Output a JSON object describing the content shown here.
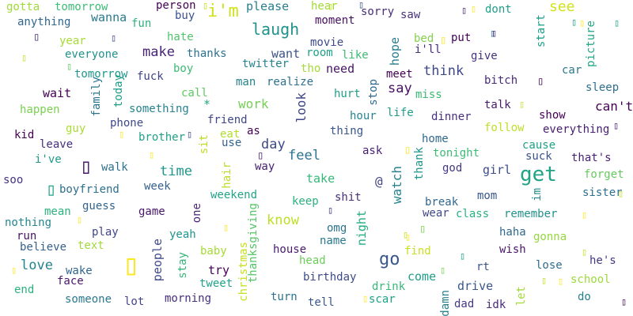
{
  "words": [
    {
      "text": "gotta",
      "color": "#a0da39"
    },
    {
      "text": "tomorrow",
      "color": "#3dbc74"
    },
    {
      "text": "wanna",
      "color": "#2a788e"
    },
    {
      "text": "person",
      "color": "#440154"
    },
    {
      "text": "i'm",
      "color": "#d0e11c"
    },
    {
      "text": "please",
      "color": "#277f8e"
    },
    {
      "text": "hear",
      "color": "#a2da37"
    },
    {
      "text": "sorry",
      "color": "#472d7b"
    },
    {
      "text": "saw",
      "color": "#46327e"
    },
    {
      "text": "dont",
      "color": "#1f9e89"
    },
    {
      "text": "see",
      "color": "#d2e21b"
    },
    {
      "text": "anything",
      "color": "#31688e"
    },
    {
      "text": "fun",
      "color": "#2db27d"
    },
    {
      "text": "buy",
      "color": "#3b528b"
    },
    {
      "text": "moment",
      "color": "#470e61"
    },
    {
      "text": "laugh",
      "color": "#21918c"
    },
    {
      "text": "year",
      "color": "#a8db34"
    },
    {
      "text": "hate",
      "color": "#50c46a"
    },
    {
      "text": "movie",
      "color": "#3e4a89"
    },
    {
      "text": "bed",
      "color": "#84d44b"
    },
    {
      "text": "put",
      "color": "#440154"
    },
    {
      "text": "start",
      "color": "#1fa088"
    },
    {
      "text": "picture",
      "color": "#22a785"
    },
    {
      "text": "everyone",
      "color": "#21918c"
    },
    {
      "text": "make",
      "color": "#482475"
    },
    {
      "text": "thanks",
      "color": "#2c728e"
    },
    {
      "text": "room",
      "color": "#1fa187"
    },
    {
      "text": "like",
      "color": "#3dbc74"
    },
    {
      "text": "hope",
      "color": "#287d8e"
    },
    {
      "text": "i'll",
      "color": "#472c7a"
    },
    {
      "text": "give",
      "color": "#46337f"
    },
    {
      "text": "want",
      "color": "#3b528b"
    },
    {
      "text": "twitter",
      "color": "#26828e"
    },
    {
      "text": "boy",
      "color": "#3bbb75"
    },
    {
      "text": "tho",
      "color": "#a5db36"
    },
    {
      "text": "need",
      "color": "#471365"
    },
    {
      "text": "meet",
      "color": "#440154"
    },
    {
      "text": "think",
      "color": "#3e4989"
    },
    {
      "text": "car",
      "color": "#2a788e"
    },
    {
      "text": "tomorrow",
      "color": "#1f988b"
    },
    {
      "text": "today",
      "color": "#1f9e89"
    },
    {
      "text": "fuck",
      "color": "#404387"
    },
    {
      "text": "man",
      "color": "#27808e"
    },
    {
      "text": "realize",
      "color": "#2d708e"
    },
    {
      "text": "bitch",
      "color": "#472a7a"
    },
    {
      "text": "sleep",
      "color": "#2e6e8e"
    },
    {
      "text": "wait",
      "color": "#440154"
    },
    {
      "text": "call",
      "color": "#5ec962"
    },
    {
      "text": "stop",
      "color": "#2f6b8e"
    },
    {
      "text": "say",
      "color": "#471063"
    },
    {
      "text": "hurt",
      "color": "#1f9f88"
    },
    {
      "text": "miss",
      "color": "#3aba76"
    },
    {
      "text": "family",
      "color": "#2a768e"
    },
    {
      "text": "happen",
      "color": "#7ad151"
    },
    {
      "text": "work",
      "color": "#75d054"
    },
    {
      "text": "something",
      "color": "#26828e"
    },
    {
      "text": "look",
      "color": "#404588"
    },
    {
      "text": "life",
      "color": "#1f9e89"
    },
    {
      "text": "talk",
      "color": "#481a6c"
    },
    {
      "text": "show",
      "color": "#440154"
    },
    {
      "text": "can't",
      "color": "#440154"
    },
    {
      "text": "hour",
      "color": "#25848e"
    },
    {
      "text": "guy",
      "color": "#aadc32"
    },
    {
      "text": "phone",
      "color": "#3e4a89"
    },
    {
      "text": "friend",
      "color": "#404688"
    },
    {
      "text": "dinner",
      "color": "#46307e"
    },
    {
      "text": "follow",
      "color": "#bddf26"
    },
    {
      "text": "everything",
      "color": "#482071"
    },
    {
      "text": "kid",
      "color": "#440154"
    },
    {
      "text": "eat",
      "color": "#b2dd2d"
    },
    {
      "text": "thing",
      "color": "#39558c"
    },
    {
      "text": "brother",
      "color": "#1fa088"
    },
    {
      "text": "as",
      "color": "#440154"
    },
    {
      "text": "cause",
      "color": "#1f9f88"
    },
    {
      "text": "leave",
      "color": "#472f7d"
    },
    {
      "text": "use",
      "color": "#33638d"
    },
    {
      "text": "sit",
      "color": "#b8de29"
    },
    {
      "text": "day",
      "color": "#3e4a89"
    },
    {
      "text": "home",
      "color": "#31688e"
    },
    {
      "text": "i've",
      "color": "#1f998a"
    },
    {
      "text": "feel",
      "color": "#2c728e"
    },
    {
      "text": "tonight",
      "color": "#3bbb75"
    },
    {
      "text": "ask",
      "color": "#482173"
    },
    {
      "text": "suck",
      "color": "#3b528b"
    },
    {
      "text": "that's",
      "color": "#482071"
    },
    {
      "text": "walk",
      "color": "#2d708e"
    },
    {
      "text": "time",
      "color": "#1f958b"
    },
    {
      "text": "way",
      "color": "#482071"
    },
    {
      "text": "thank",
      "color": "#1f968b"
    },
    {
      "text": "get",
      "color": "#20a386"
    },
    {
      "text": "god",
      "color": "#453781"
    },
    {
      "text": "girl",
      "color": "#3d4d8a"
    },
    {
      "text": "forget",
      "color": "#65cb5e"
    },
    {
      "text": "soo",
      "color": "#453581"
    },
    {
      "text": "hair",
      "color": "#bade28"
    },
    {
      "text": "take",
      "color": "#35b779"
    },
    {
      "text": "boyfriend",
      "color": "#2e6e8e"
    },
    {
      "text": "week",
      "color": "#34618d"
    },
    {
      "text": "weekend",
      "color": "#20a486"
    },
    {
      "text": "@",
      "color": "#414487"
    },
    {
      "text": "watch",
      "color": "#26828e"
    },
    {
      "text": "im",
      "color": "#228c8d"
    },
    {
      "text": "sister",
      "color": "#2e6f8e"
    },
    {
      "text": "keep",
      "color": "#2ab07f"
    },
    {
      "text": "shit",
      "color": "#472f7d"
    },
    {
      "text": "break",
      "color": "#31688e"
    },
    {
      "text": "mom",
      "color": "#39568c"
    },
    {
      "text": "mean",
      "color": "#2db27d"
    },
    {
      "text": "guess",
      "color": "#32648e"
    },
    {
      "text": "thanksgiving",
      "color": "#54c568"
    },
    {
      "text": "game",
      "color": "#481769"
    },
    {
      "text": "one",
      "color": "#482475"
    },
    {
      "text": "know",
      "color": "#bddf26"
    },
    {
      "text": "wear",
      "color": "#3f4889"
    },
    {
      "text": "class",
      "color": "#2ab07f"
    },
    {
      "text": "remember",
      "color": "#21918c"
    },
    {
      "text": "nothing",
      "color": "#24868e"
    },
    {
      "text": "night",
      "color": "#25ab82"
    },
    {
      "text": "omg",
      "color": "#2c738e"
    },
    {
      "text": "run",
      "color": "#471365"
    },
    {
      "text": "play",
      "color": "#404588"
    },
    {
      "text": "yeah",
      "color": "#20938c"
    },
    {
      "text": "believe",
      "color": "#34618d"
    },
    {
      "text": "text",
      "color": "#a0da39"
    },
    {
      "text": "name",
      "color": "#2a788e"
    },
    {
      "text": "haha",
      "color": "#31688e"
    },
    {
      "text": "gonna",
      "color": "#95d840"
    },
    {
      "text": "love",
      "color": "#25838e"
    },
    {
      "text": "go",
      "color": "#39568c"
    },
    {
      "text": "find",
      "color": "#c8e020"
    },
    {
      "text": "wish",
      "color": "#481668"
    },
    {
      "text": "people",
      "color": "#3e4989"
    },
    {
      "text": "baby",
      "color": "#a5db36"
    },
    {
      "text": "house",
      "color": "#481b6d"
    },
    {
      "text": "head",
      "color": "#6ccd5a"
    },
    {
      "text": "he's",
      "color": "#453882"
    },
    {
      "text": "rt",
      "color": "#3a548c"
    },
    {
      "text": "lose",
      "color": "#2e6e8e"
    },
    {
      "text": "wake",
      "color": "#32658e"
    },
    {
      "text": "face",
      "color": "#48186a"
    },
    {
      "text": "try",
      "color": "#440154"
    },
    {
      "text": "stay",
      "color": "#34b679"
    },
    {
      "text": "christmas",
      "color": "#c5e021"
    },
    {
      "text": "come",
      "color": "#1f9e89"
    },
    {
      "text": "school",
      "color": "#9bd93c"
    },
    {
      "text": "birthday",
      "color": "#3e4c8a"
    },
    {
      "text": "tweet",
      "color": "#1fa287"
    },
    {
      "text": "end",
      "color": "#2cb17e"
    },
    {
      "text": "drink",
      "color": "#37b878"
    },
    {
      "text": "drive",
      "color": "#38588c"
    },
    {
      "text": "let",
      "color": "#a2da37"
    },
    {
      "text": "someone",
      "color": "#2a788e"
    },
    {
      "text": "lot",
      "color": "#404588"
    },
    {
      "text": "morning",
      "color": "#462f7e"
    },
    {
      "text": "turn",
      "color": "#2c728e"
    },
    {
      "text": "tell",
      "color": "#38588c"
    },
    {
      "text": "scar",
      "color": "#1fa188"
    },
    {
      "text": "damn",
      "color": "#27808e"
    },
    {
      "text": "dad",
      "color": "#443983"
    },
    {
      "text": "idk",
      "color": "#482878"
    },
    {
      "text": "do",
      "color": "#26828e"
    },
    {
      "text": "*",
      "color": "#25ab82"
    }
  ],
  "glyphs": [
    {
      "text": "▯",
      "color": "#c2df23"
    },
    {
      "text": "▯",
      "color": "#3b528b"
    },
    {
      "text": "▯",
      "color": "#482173"
    },
    {
      "text": "▯",
      "color": "#472d7b"
    },
    {
      "text": "▯",
      "color": "#3e4a89"
    },
    {
      "text": "▯",
      "color": "#fde725"
    },
    {
      "text": "▯",
      "color": "#1fa088"
    },
    {
      "text": "▯",
      "color": "#20a486"
    },
    {
      "text": "▯",
      "color": "#c2df23"
    },
    {
      "text": "▯",
      "color": "#5ec962"
    },
    {
      "text": "▯",
      "color": "#2a788e"
    },
    {
      "text": "▯",
      "color": "#440154"
    },
    {
      "text": "▯",
      "color": "#c2df23"
    },
    {
      "text": "▯",
      "color": "#481b6d"
    },
    {
      "text": "▯",
      "color": "#fde725"
    },
    {
      "text": "▯",
      "color": "#3e4a89"
    },
    {
      "text": "▯",
      "color": "#fde725"
    },
    {
      "text": "▯",
      "color": "#48186a"
    },
    {
      "text": "▯",
      "color": "#20a486"
    },
    {
      "text": "▯",
      "color": "#481b6d"
    },
    {
      "text": "▯",
      "color": "#fde725"
    },
    {
      "text": "▯",
      "color": "#c2df23"
    },
    {
      "text": "▯",
      "color": "#46337f"
    },
    {
      "text": "▯",
      "color": "#fde725"
    },
    {
      "text": "▯",
      "color": "#fde725"
    },
    {
      "text": "▯",
      "color": "#fde725"
    },
    {
      "text": "▯",
      "color": "#c2df23"
    },
    {
      "text": "▯",
      "color": "#7ad151"
    },
    {
      "text": "▯",
      "color": "#fde725"
    },
    {
      "text": "▯",
      "color": "#fde725"
    },
    {
      "text": "▯",
      "color": "#20a486"
    },
    {
      "text": "▯",
      "color": "#c2df23"
    },
    {
      "text": "▯",
      "color": "#c2df23"
    },
    {
      "text": "▯",
      "color": "#440154"
    },
    {
      "text": "▯",
      "color": "#fde725"
    },
    {
      "text": "▯",
      "color": "#fde725"
    },
    {
      "text": "▯",
      "color": "#c2df23"
    },
    {
      "text": "▯",
      "color": "#fde725"
    },
    {
      "text": "▯",
      "color": "#7ad151"
    },
    {
      "text": "▯",
      "color": "#fde725"
    },
    {
      "text": "▯",
      "color": "#fde725"
    },
    {
      "text": "▯",
      "color": "#472d7b"
    }
  ]
}
